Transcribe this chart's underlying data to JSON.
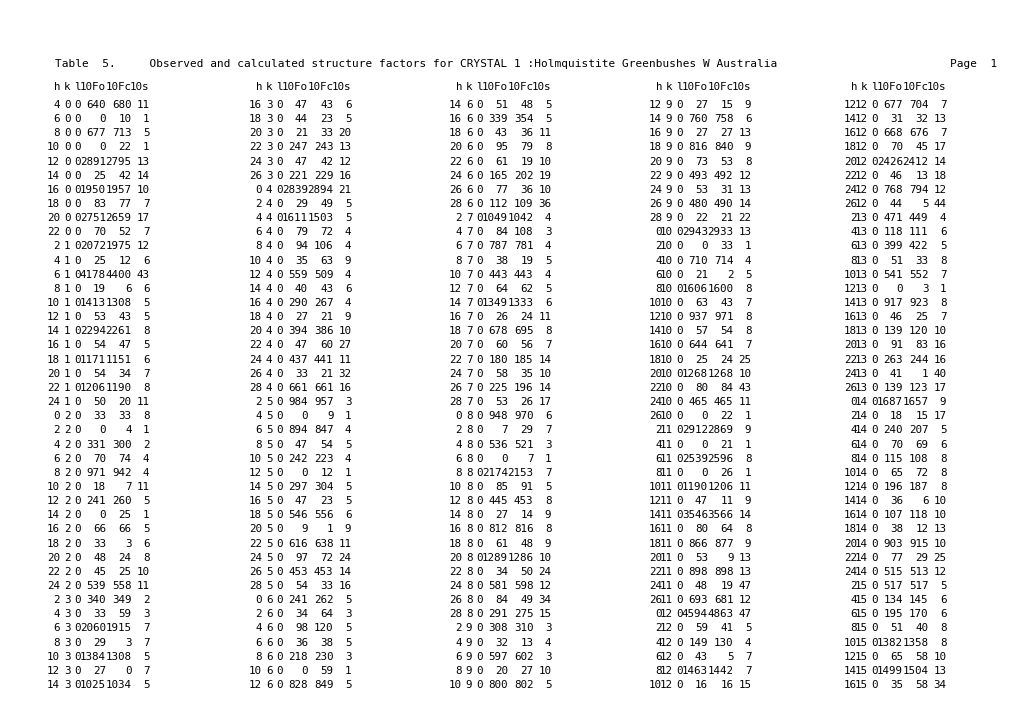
{
  "title_left": "Table  5.     Observed and calculated structure factors for CRYSTAL 1 :Holmquistite Greenbushes W Australia",
  "title_right": "Page  1",
  "header_label": "h  k  l 10Fo 10Fc 10s",
  "font_size": 7.8,
  "title_font_size": 8.0,
  "rows": [
    [
      "4",
      "0",
      "0",
      "640",
      "680",
      "11",
      "16",
      "3",
      "0",
      "47",
      "43",
      "6",
      "14",
      "6",
      "0",
      "51",
      "48",
      "5",
      "12",
      "9",
      "0",
      "27",
      "15",
      "9",
      "12",
      "12",
      "0",
      "677",
      "704",
      "7"
    ],
    [
      "6",
      "0",
      "0",
      "0",
      "10",
      "1",
      "18",
      "3",
      "0",
      "44",
      "23",
      "5",
      "16",
      "6",
      "0",
      "339",
      "354",
      "5",
      "14",
      "9",
      "0",
      "760",
      "758",
      "6",
      "14",
      "12",
      "0",
      "31",
      "32",
      "13"
    ],
    [
      "8",
      "0",
      "0",
      "677",
      "713",
      "5",
      "20",
      "3",
      "0",
      "21",
      "33",
      "20",
      "18",
      "6",
      "0",
      "43",
      "36",
      "11",
      "16",
      "9",
      "0",
      "27",
      "27",
      "13",
      "16",
      "12",
      "0",
      "668",
      "676",
      "7"
    ],
    [
      "10",
      "0",
      "0",
      "0",
      "22",
      "1",
      "22",
      "3",
      "0",
      "247",
      "243",
      "13",
      "20",
      "6",
      "0",
      "95",
      "79",
      "8",
      "18",
      "9",
      "0",
      "816",
      "840",
      "9",
      "18",
      "12",
      "0",
      "70",
      "45",
      "17"
    ],
    [
      "12",
      "0",
      "0",
      "2891",
      "2795",
      "13",
      "24",
      "3",
      "0",
      "47",
      "42",
      "12",
      "22",
      "6",
      "0",
      "61",
      "19",
      "10",
      "20",
      "9",
      "0",
      "73",
      "53",
      "8",
      "20",
      "12",
      "0",
      "2426",
      "2412",
      "14"
    ],
    [
      "14",
      "0",
      "0",
      "25",
      "42",
      "14",
      "26",
      "3",
      "0",
      "221",
      "229",
      "16",
      "24",
      "6",
      "0",
      "165",
      "202",
      "19",
      "22",
      "9",
      "0",
      "493",
      "492",
      "12",
      "22",
      "12",
      "0",
      "46",
      "13",
      "18"
    ],
    [
      "16",
      "0",
      "0",
      "1950",
      "1957",
      "10",
      "0",
      "4",
      "0",
      "2839",
      "2894",
      "21",
      "26",
      "6",
      "0",
      "77",
      "36",
      "10",
      "24",
      "9",
      "0",
      "53",
      "31",
      "13",
      "24",
      "12",
      "0",
      "768",
      "794",
      "12"
    ],
    [
      "18",
      "0",
      "0",
      "83",
      "77",
      "7",
      "2",
      "4",
      "0",
      "29",
      "49",
      "5",
      "28",
      "6",
      "0",
      "112",
      "109",
      "36",
      "26",
      "9",
      "0",
      "480",
      "490",
      "14",
      "26",
      "12",
      "0",
      "44",
      "5",
      "44"
    ],
    [
      "20",
      "0",
      "0",
      "2751",
      "2659",
      "17",
      "4",
      "4",
      "0",
      "1611",
      "1503",
      "5",
      "2",
      "7",
      "0",
      "1049",
      "1042",
      "4",
      "28",
      "9",
      "0",
      "22",
      "21",
      "22",
      "2",
      "13",
      "0",
      "471",
      "449",
      "4"
    ],
    [
      "22",
      "0",
      "0",
      "70",
      "52",
      "7",
      "6",
      "4",
      "0",
      "79",
      "72",
      "4",
      "4",
      "7",
      "0",
      "84",
      "108",
      "3",
      "0",
      "10",
      "0",
      "2943",
      "2933",
      "13",
      "4",
      "13",
      "0",
      "118",
      "111",
      "6"
    ],
    [
      "2",
      "1",
      "0",
      "2072",
      "1975",
      "12",
      "8",
      "4",
      "0",
      "94",
      "106",
      "4",
      "6",
      "7",
      "0",
      "787",
      "781",
      "4",
      "2",
      "10",
      "0",
      "0",
      "33",
      "1",
      "6",
      "13",
      "0",
      "399",
      "422",
      "5"
    ],
    [
      "4",
      "1",
      "0",
      "25",
      "12",
      "6",
      "10",
      "4",
      "0",
      "35",
      "63",
      "9",
      "8",
      "7",
      "0",
      "38",
      "19",
      "5",
      "4",
      "10",
      "0",
      "710",
      "714",
      "4",
      "8",
      "13",
      "0",
      "51",
      "33",
      "8"
    ],
    [
      "6",
      "1",
      "0",
      "4178",
      "4400",
      "43",
      "12",
      "4",
      "0",
      "559",
      "509",
      "4",
      "10",
      "7",
      "0",
      "443",
      "443",
      "4",
      "6",
      "10",
      "0",
      "21",
      "2",
      "5",
      "10",
      "13",
      "0",
      "541",
      "552",
      "7"
    ],
    [
      "8",
      "1",
      "0",
      "19",
      "6",
      "6",
      "14",
      "4",
      "0",
      "40",
      "43",
      "6",
      "12",
      "7",
      "0",
      "64",
      "62",
      "5",
      "8",
      "10",
      "0",
      "1606",
      "1600",
      "8",
      "12",
      "13",
      "0",
      "0",
      "3",
      "1"
    ],
    [
      "10",
      "1",
      "0",
      "1413",
      "1308",
      "5",
      "16",
      "4",
      "0",
      "290",
      "267",
      "4",
      "14",
      "7",
      "0",
      "1349",
      "1333",
      "6",
      "10",
      "10",
      "0",
      "63",
      "43",
      "7",
      "14",
      "13",
      "0",
      "917",
      "923",
      "8"
    ],
    [
      "12",
      "1",
      "0",
      "53",
      "43",
      "5",
      "18",
      "4",
      "0",
      "27",
      "21",
      "9",
      "16",
      "7",
      "0",
      "26",
      "24",
      "11",
      "12",
      "10",
      "0",
      "937",
      "971",
      "8",
      "16",
      "13",
      "0",
      "46",
      "25",
      "7"
    ],
    [
      "14",
      "1",
      "0",
      "2294",
      "2261",
      "8",
      "20",
      "4",
      "0",
      "394",
      "386",
      "10",
      "18",
      "7",
      "0",
      "678",
      "695",
      "8",
      "14",
      "10",
      "0",
      "57",
      "54",
      "8",
      "18",
      "13",
      "0",
      "139",
      "120",
      "10"
    ],
    [
      "16",
      "1",
      "0",
      "54",
      "47",
      "5",
      "22",
      "4",
      "0",
      "47",
      "60",
      "27",
      "20",
      "7",
      "0",
      "60",
      "56",
      "7",
      "16",
      "10",
      "0",
      "644",
      "641",
      "7",
      "20",
      "13",
      "0",
      "91",
      "83",
      "16"
    ],
    [
      "18",
      "1",
      "0",
      "1171",
      "1151",
      "6",
      "24",
      "4",
      "0",
      "437",
      "441",
      "11",
      "22",
      "7",
      "0",
      "180",
      "185",
      "14",
      "18",
      "10",
      "0",
      "25",
      "24",
      "25",
      "22",
      "13",
      "0",
      "263",
      "244",
      "16"
    ],
    [
      "20",
      "1",
      "0",
      "54",
      "34",
      "7",
      "26",
      "4",
      "0",
      "33",
      "21",
      "32",
      "24",
      "7",
      "0",
      "58",
      "35",
      "10",
      "20",
      "10",
      "0",
      "1268",
      "1268",
      "10",
      "24",
      "13",
      "0",
      "41",
      "1",
      "40"
    ],
    [
      "22",
      "1",
      "0",
      "1206",
      "1190",
      "8",
      "28",
      "4",
      "0",
      "661",
      "661",
      "16",
      "26",
      "7",
      "0",
      "225",
      "196",
      "14",
      "22",
      "10",
      "0",
      "80",
      "84",
      "43",
      "26",
      "13",
      "0",
      "139",
      "123",
      "17"
    ],
    [
      "24",
      "1",
      "0",
      "50",
      "20",
      "11",
      "2",
      "5",
      "0",
      "984",
      "957",
      "3",
      "28",
      "7",
      "0",
      "53",
      "26",
      "17",
      "24",
      "10",
      "0",
      "465",
      "465",
      "11",
      "0",
      "14",
      "0",
      "1687",
      "1657",
      "9"
    ],
    [
      "0",
      "2",
      "0",
      "33",
      "33",
      "8",
      "4",
      "5",
      "0",
      "0",
      "9",
      "1",
      "0",
      "8",
      "0",
      "948",
      "970",
      "6",
      "26",
      "10",
      "0",
      "0",
      "22",
      "1",
      "2",
      "14",
      "0",
      "18",
      "15",
      "17"
    ],
    [
      "2",
      "2",
      "0",
      "0",
      "4",
      "1",
      "6",
      "5",
      "0",
      "894",
      "847",
      "4",
      "2",
      "8",
      "0",
      "7",
      "29",
      "7",
      "2",
      "11",
      "0",
      "2912",
      "2869",
      "9",
      "4",
      "14",
      "0",
      "240",
      "207",
      "5"
    ],
    [
      "4",
      "2",
      "0",
      "331",
      "300",
      "2",
      "8",
      "5",
      "0",
      "47",
      "54",
      "5",
      "4",
      "8",
      "0",
      "536",
      "521",
      "3",
      "4",
      "11",
      "0",
      "0",
      "21",
      "1",
      "6",
      "14",
      "0",
      "70",
      "69",
      "6"
    ],
    [
      "6",
      "2",
      "0",
      "70",
      "74",
      "4",
      "10",
      "5",
      "0",
      "242",
      "223",
      "4",
      "6",
      "8",
      "0",
      "0",
      "7",
      "1",
      "6",
      "11",
      "0",
      "2539",
      "2596",
      "8",
      "8",
      "14",
      "0",
      "115",
      "108",
      "8"
    ],
    [
      "8",
      "2",
      "0",
      "971",
      "942",
      "4",
      "12",
      "5",
      "0",
      "0",
      "12",
      "1",
      "8",
      "8",
      "0",
      "2174",
      "2153",
      "7",
      "8",
      "11",
      "0",
      "0",
      "26",
      "1",
      "10",
      "14",
      "0",
      "65",
      "72",
      "8"
    ],
    [
      "10",
      "2",
      "0",
      "18",
      "7",
      "11",
      "14",
      "5",
      "0",
      "297",
      "304",
      "5",
      "10",
      "8",
      "0",
      "85",
      "91",
      "5",
      "10",
      "11",
      "0",
      "1190",
      "1206",
      "11",
      "12",
      "14",
      "0",
      "196",
      "187",
      "8"
    ],
    [
      "12",
      "2",
      "0",
      "241",
      "260",
      "5",
      "16",
      "5",
      "0",
      "47",
      "23",
      "5",
      "12",
      "8",
      "0",
      "445",
      "453",
      "8",
      "12",
      "11",
      "0",
      "47",
      "11",
      "9",
      "14",
      "14",
      "0",
      "36",
      "6",
      "10"
    ],
    [
      "14",
      "2",
      "0",
      "0",
      "25",
      "1",
      "18",
      "5",
      "0",
      "546",
      "556",
      "6",
      "14",
      "8",
      "0",
      "27",
      "14",
      "9",
      "14",
      "11",
      "0",
      "3546",
      "3566",
      "14",
      "16",
      "14",
      "0",
      "107",
      "118",
      "10"
    ],
    [
      "16",
      "2",
      "0",
      "66",
      "66",
      "5",
      "20",
      "5",
      "0",
      "9",
      "1",
      "9",
      "16",
      "8",
      "0",
      "812",
      "816",
      "8",
      "16",
      "11",
      "0",
      "80",
      "64",
      "8",
      "18",
      "14",
      "0",
      "38",
      "12",
      "13"
    ],
    [
      "18",
      "2",
      "0",
      "33",
      "3",
      "6",
      "22",
      "5",
      "0",
      "616",
      "638",
      "11",
      "18",
      "8",
      "0",
      "61",
      "48",
      "9",
      "18",
      "11",
      "0",
      "866",
      "877",
      "9",
      "20",
      "14",
      "0",
      "903",
      "915",
      "10"
    ],
    [
      "20",
      "2",
      "0",
      "48",
      "24",
      "8",
      "24",
      "5",
      "0",
      "97",
      "72",
      "24",
      "20",
      "8",
      "0",
      "1289",
      "1286",
      "10",
      "20",
      "11",
      "0",
      "53",
      "9",
      "13",
      "22",
      "14",
      "0",
      "77",
      "29",
      "25"
    ],
    [
      "22",
      "2",
      "0",
      "45",
      "25",
      "10",
      "26",
      "5",
      "0",
      "453",
      "453",
      "14",
      "22",
      "8",
      "0",
      "34",
      "50",
      "24",
      "22",
      "11",
      "0",
      "898",
      "898",
      "13",
      "24",
      "14",
      "0",
      "515",
      "513",
      "12"
    ],
    [
      "24",
      "2",
      "0",
      "539",
      "558",
      "11",
      "28",
      "5",
      "0",
      "54",
      "33",
      "16",
      "24",
      "8",
      "0",
      "581",
      "598",
      "12",
      "24",
      "11",
      "0",
      "48",
      "19",
      "47",
      "2",
      "15",
      "0",
      "517",
      "517",
      "5"
    ],
    [
      "2",
      "3",
      "0",
      "340",
      "349",
      "2",
      "0",
      "6",
      "0",
      "241",
      "262",
      "5",
      "26",
      "8",
      "0",
      "84",
      "49",
      "34",
      "26",
      "11",
      "0",
      "693",
      "681",
      "12",
      "4",
      "15",
      "0",
      "134",
      "145",
      "6"
    ],
    [
      "4",
      "3",
      "0",
      "33",
      "59",
      "3",
      "2",
      "6",
      "0",
      "34",
      "64",
      "3",
      "28",
      "8",
      "0",
      "291",
      "275",
      "15",
      "0",
      "12",
      "0",
      "4594",
      "4863",
      "47",
      "6",
      "15",
      "0",
      "195",
      "170",
      "6"
    ],
    [
      "6",
      "3",
      "0",
      "2060",
      "1915",
      "7",
      "4",
      "6",
      "0",
      "98",
      "120",
      "5",
      "2",
      "9",
      "0",
      "308",
      "310",
      "3",
      "2",
      "12",
      "0",
      "59",
      "41",
      "5",
      "8",
      "15",
      "0",
      "51",
      "40",
      "8"
    ],
    [
      "8",
      "3",
      "0",
      "29",
      "3",
      "7",
      "6",
      "6",
      "0",
      "36",
      "38",
      "5",
      "4",
      "9",
      "0",
      "32",
      "13",
      "4",
      "4",
      "12",
      "0",
      "149",
      "130",
      "4",
      "10",
      "15",
      "0",
      "1382",
      "1358",
      "8"
    ],
    [
      "10",
      "3",
      "0",
      "1384",
      "1308",
      "5",
      "8",
      "6",
      "0",
      "218",
      "230",
      "3",
      "6",
      "9",
      "0",
      "597",
      "602",
      "3",
      "6",
      "12",
      "0",
      "43",
      "5",
      "7",
      "12",
      "15",
      "0",
      "65",
      "58",
      "10"
    ],
    [
      "12",
      "3",
      "0",
      "27",
      "0",
      "7",
      "10",
      "6",
      "0",
      "0",
      "59",
      "1",
      "8",
      "9",
      "0",
      "20",
      "27",
      "10",
      "8",
      "12",
      "0",
      "1463",
      "1442",
      "7",
      "14",
      "15",
      "0",
      "1499",
      "1504",
      "13"
    ],
    [
      "14",
      "3",
      "0",
      "1025",
      "1034",
      "5",
      "12",
      "6",
      "0",
      "828",
      "849",
      "5",
      "10",
      "9",
      "0",
      "800",
      "802",
      "5",
      "10",
      "12",
      "0",
      "16",
      "16",
      "15",
      "16",
      "15",
      "0",
      "35",
      "58",
      "34"
    ]
  ],
  "background": "#ffffff",
  "text_color": "#000000"
}
